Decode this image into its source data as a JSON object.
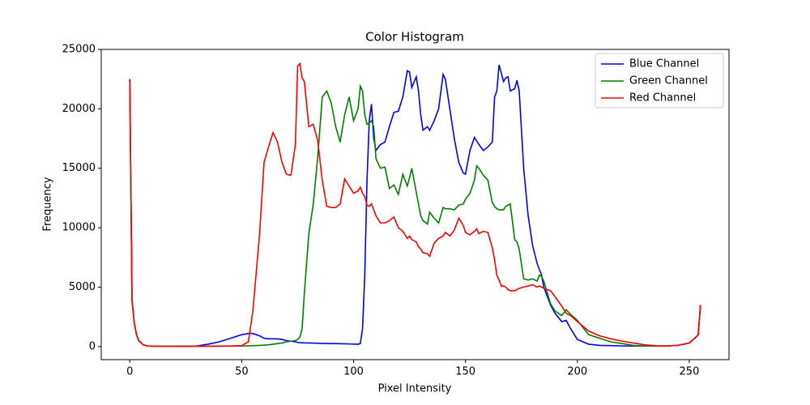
{
  "chart_data": {
    "type": "line",
    "title": "Color Histogram",
    "x_label": "Pixel Intensity",
    "y_label": "Frequency",
    "x": [
      0,
      1,
      2,
      3,
      4,
      6,
      8,
      10,
      15,
      20,
      25,
      30,
      35,
      40,
      45,
      50,
      53,
      55,
      58,
      60,
      62,
      64,
      66,
      68,
      70,
      72,
      74,
      75,
      76,
      77,
      78,
      80,
      82,
      84,
      86,
      88,
      90,
      92,
      94,
      96,
      98,
      100,
      102,
      103,
      104,
      105,
      106,
      107,
      108,
      109,
      110,
      112,
      114,
      116,
      118,
      120,
      122,
      124,
      125,
      126,
      128,
      129,
      130,
      131,
      133,
      134,
      136,
      138,
      140,
      141,
      143,
      145,
      147,
      149,
      150,
      152,
      154,
      155,
      156,
      158,
      160,
      162,
      163,
      164,
      165,
      166,
      167,
      168,
      169,
      170,
      172,
      173,
      174,
      176,
      178,
      180,
      182,
      183,
      184,
      185,
      188,
      190,
      193,
      195,
      197,
      200,
      205,
      210,
      215,
      220,
      225,
      230,
      235,
      240,
      245,
      250,
      253,
      254,
      255
    ],
    "series": [
      {
        "name": "Blue Channel",
        "color": "#0000ff",
        "values": [
          22500,
          4000,
          2000,
          1000,
          500,
          150,
          50,
          30,
          20,
          20,
          20,
          50,
          200,
          400,
          700,
          1000,
          1100,
          1100,
          900,
          700,
          650,
          650,
          650,
          600,
          500,
          450,
          400,
          350,
          330,
          320,
          310,
          300,
          290,
          280,
          270,
          260,
          250,
          250,
          240,
          230,
          220,
          210,
          200,
          250,
          1500,
          6000,
          14000,
          19000,
          20400,
          17500,
          16500,
          17000,
          17200,
          18500,
          19700,
          19800,
          21000,
          23200,
          23100,
          21800,
          22700,
          21500,
          19500,
          18200,
          18500,
          18200,
          19000,
          20000,
          22900,
          22500,
          20000,
          17500,
          15500,
          14600,
          14500,
          16500,
          17600,
          17300,
          17000,
          16500,
          16800,
          17200,
          21000,
          21500,
          23700,
          23000,
          22300,
          22600,
          22700,
          21500,
          21700,
          22400,
          21500,
          15000,
          11000,
          8500,
          7000,
          6500,
          6000,
          5000,
          3500,
          2800,
          2100,
          2200,
          1500,
          600,
          200,
          100,
          80,
          50,
          50,
          50,
          50,
          50,
          100,
          300,
          800,
          1000,
          3500
        ]
      },
      {
        "name": "Green Channel",
        "color": "#008000",
        "values": [
          22000,
          3800,
          2000,
          1000,
          500,
          150,
          50,
          30,
          20,
          20,
          20,
          30,
          30,
          30,
          40,
          50,
          60,
          80,
          100,
          120,
          150,
          200,
          250,
          300,
          400,
          450,
          500,
          600,
          800,
          1500,
          4500,
          9500,
          12000,
          16000,
          21000,
          21500,
          20500,
          18500,
          17200,
          19500,
          21000,
          19000,
          20000,
          21900,
          21500,
          19500,
          18700,
          18800,
          19000,
          18500,
          15800,
          15000,
          15100,
          13300,
          13600,
          12800,
          14500,
          13500,
          14200,
          15000,
          13000,
          12000,
          11000,
          10600,
          10300,
          11300,
          10800,
          10400,
          11700,
          11600,
          11600,
          11500,
          11900,
          12000,
          12400,
          12900,
          14000,
          15200,
          15000,
          14400,
          14000,
          12100,
          11800,
          11600,
          11500,
          11500,
          11500,
          11800,
          11900,
          12000,
          9000,
          8800,
          8200,
          5700,
          5600,
          5700,
          5500,
          6000,
          5900,
          5500,
          3600,
          3000,
          2600,
          3100,
          2700,
          2200,
          1000,
          700,
          400,
          250,
          100,
          50,
          50,
          50,
          100,
          300,
          800,
          1000,
          3500
        ]
      },
      {
        "name": "Red Channel",
        "color": "#ff0000",
        "values": [
          22300,
          3900,
          2000,
          1000,
          500,
          150,
          50,
          30,
          20,
          20,
          20,
          30,
          30,
          40,
          50,
          80,
          400,
          3000,
          9500,
          15500,
          16800,
          18000,
          17200,
          15500,
          14500,
          14400,
          17000,
          23600,
          23800,
          22600,
          22300,
          18500,
          18700,
          17300,
          14000,
          11800,
          11700,
          11700,
          12000,
          14100,
          13500,
          12900,
          13100,
          13400,
          12900,
          12600,
          11900,
          11800,
          12000,
          11500,
          11000,
          10400,
          10400,
          10600,
          10900,
          10000,
          9700,
          9100,
          9300,
          9000,
          8800,
          8400,
          8200,
          7900,
          7800,
          7600,
          8700,
          9100,
          9300,
          9600,
          9300,
          9800,
          10800,
          10200,
          9600,
          9400,
          9700,
          9900,
          9500,
          9700,
          9600,
          8300,
          7300,
          6000,
          5600,
          5100,
          5100,
          5000,
          4800,
          4700,
          4700,
          4800,
          4900,
          5000,
          5100,
          5200,
          5000,
          5100,
          5000,
          4900,
          4700,
          4200,
          3400,
          2800,
          2600,
          2100,
          1300,
          900,
          650,
          450,
          300,
          150,
          60,
          50,
          100,
          300,
          800,
          1000,
          3500
        ]
      }
    ],
    "xlim": [
      -12.75,
      267.75
    ],
    "ylim": [
      -1100,
      25000
    ],
    "xticks": [
      0,
      50,
      100,
      150,
      200,
      250
    ],
    "yticks": [
      0,
      5000,
      10000,
      15000,
      20000,
      25000
    ],
    "legend": "upper right"
  }
}
